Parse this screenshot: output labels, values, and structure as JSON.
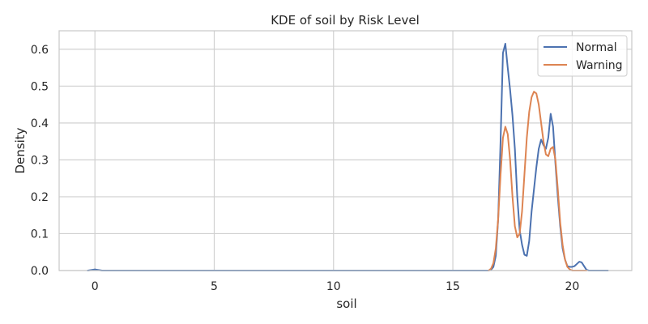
{
  "chart_data": {
    "type": "line",
    "title": "KDE of soil by Risk Level",
    "xlabel": "soil",
    "ylabel": "Density",
    "xlim": [
      -1.5,
      22.5
    ],
    "ylim": [
      0,
      0.65
    ],
    "xticks": [
      0,
      5,
      10,
      15,
      20
    ],
    "xtick_labels": [
      "0",
      "5",
      "10",
      "15",
      "20"
    ],
    "yticks": [
      0.0,
      0.1,
      0.2,
      0.3,
      0.4,
      0.5,
      0.6
    ],
    "ytick_labels": [
      "0.0",
      "0.1",
      "0.2",
      "0.3",
      "0.4",
      "0.5",
      "0.6"
    ],
    "grid": true,
    "legend_position": "top-right",
    "series": [
      {
        "name": "Normal",
        "color": "#4c72b0",
        "x": [
          -0.3,
          -0.1,
          0.0,
          0.1,
          0.3,
          2,
          5,
          10,
          15,
          16.5,
          16.6,
          16.7,
          16.8,
          16.9,
          17.0,
          17.1,
          17.2,
          17.3,
          17.4,
          17.5,
          17.6,
          17.7,
          17.8,
          17.9,
          18.0,
          18.1,
          18.2,
          18.3,
          18.4,
          18.5,
          18.6,
          18.7,
          18.8,
          18.9,
          19.0,
          19.1,
          19.2,
          19.3,
          19.4,
          19.5,
          19.6,
          19.7,
          19.8,
          19.9,
          20.0,
          20.1,
          20.2,
          20.3,
          20.4,
          20.5,
          20.6,
          20.7,
          20.8,
          20.9,
          21.0,
          21.1,
          21.2,
          21.3,
          21.4,
          21.5
        ],
        "y": [
          0.0,
          0.002,
          0.003,
          0.002,
          0.0,
          0.0,
          0.0,
          0.0,
          0.0,
          0.0,
          0.002,
          0.01,
          0.04,
          0.14,
          0.35,
          0.59,
          0.615,
          0.55,
          0.49,
          0.42,
          0.33,
          0.2,
          0.11,
          0.07,
          0.043,
          0.04,
          0.08,
          0.16,
          0.22,
          0.28,
          0.33,
          0.355,
          0.34,
          0.33,
          0.36,
          0.425,
          0.39,
          0.29,
          0.2,
          0.12,
          0.06,
          0.03,
          0.012,
          0.01,
          0.01,
          0.012,
          0.018,
          0.024,
          0.022,
          0.012,
          0.002,
          0.0,
          0.0,
          0.0,
          0.0,
          0.0,
          0.0,
          0.0,
          0.0,
          0.0
        ]
      },
      {
        "name": "Warning",
        "color": "#dd8452",
        "x": [
          16.5,
          16.6,
          16.7,
          16.8,
          16.9,
          17.0,
          17.1,
          17.2,
          17.3,
          17.4,
          17.5,
          17.6,
          17.7,
          17.8,
          17.9,
          18.0,
          18.1,
          18.2,
          18.3,
          18.4,
          18.5,
          18.6,
          18.7,
          18.8,
          18.9,
          19.0,
          19.1,
          19.2,
          19.3,
          19.4,
          19.5,
          19.6,
          19.7,
          19.8,
          19.9,
          20.0,
          20.1,
          20.2,
          20.3,
          20.4,
          20.5,
          20.6
        ],
        "y": [
          0.0,
          0.005,
          0.02,
          0.06,
          0.14,
          0.26,
          0.36,
          0.39,
          0.37,
          0.3,
          0.2,
          0.12,
          0.09,
          0.1,
          0.16,
          0.26,
          0.36,
          0.43,
          0.47,
          0.485,
          0.48,
          0.45,
          0.4,
          0.35,
          0.315,
          0.31,
          0.33,
          0.335,
          0.3,
          0.22,
          0.13,
          0.07,
          0.03,
          0.01,
          0.003,
          0.0,
          0.0,
          0.0,
          0.0,
          0.0,
          0.0,
          0.0
        ]
      }
    ]
  }
}
